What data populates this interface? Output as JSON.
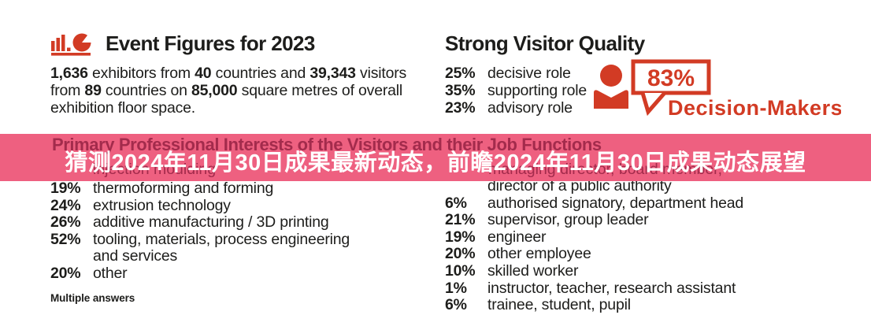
{
  "colors": {
    "accent_red": "#d23b24",
    "banner_pink": "#ee6080",
    "obscured_maroon": "#a32b4c",
    "text_black": "#1d1d1b"
  },
  "event_figures": {
    "icon": "bar-chart-pie-logo",
    "title": "Event Figures for 2023",
    "paragraph_lines": [
      [
        {
          "t": "1,636",
          "b": 1
        },
        {
          "t": " exhibitors from ",
          "b": 0
        },
        {
          "t": "40",
          "b": 1
        },
        {
          "t": " countries and ",
          "b": 0
        },
        {
          "t": "39,343",
          "b": 1
        },
        {
          "t": " visitors",
          "b": 0
        }
      ],
      [
        {
          "t": "from ",
          "b": 0
        },
        {
          "t": "89",
          "b": 1
        },
        {
          "t": " countries on ",
          "b": 0
        },
        {
          "t": "85,000",
          "b": 1
        },
        {
          "t": " square metres of overall",
          "b": 0
        }
      ],
      [
        {
          "t": "exhibition floor space.",
          "b": 0
        }
      ]
    ]
  },
  "visitor_quality": {
    "title": "Strong Visitor Quality",
    "stats": [
      {
        "pct": "25%",
        "label": "decisive role"
      },
      {
        "pct": "35%",
        "label": "supporting role"
      },
      {
        "pct": "23%",
        "label": "advisory role"
      }
    ],
    "decision_makers": {
      "value": "83%",
      "label": "Decision-Makers",
      "icon": "person-icon"
    }
  },
  "overlay_banner": {
    "text": "猜测2024年11月30日成果最新动态，前瞻2024年11月30日成果动态展望"
  },
  "section": {
    "heading_partially_hidden": "Primary Professional Interests of the Visitors and their Job Functions",
    "interests": {
      "hidden_row_fragment": "injection moulding",
      "rows": [
        {
          "pct": "19%",
          "lines": [
            "thermoforming and forming"
          ]
        },
        {
          "pct": "24%",
          "lines": [
            "extrusion technology"
          ]
        },
        {
          "pct": "26%",
          "lines": [
            "additive manufacturing / 3D printing"
          ]
        },
        {
          "pct": "52%",
          "lines": [
            "tooling, materials, process engineering",
            "and services"
          ]
        },
        {
          "pct": "20%",
          "lines": [
            "other"
          ]
        }
      ],
      "footnote": "Multiple answers"
    },
    "job_functions": {
      "hidden_row_fragment": "managing director, board member,",
      "rows": [
        {
          "pct": "",
          "lines": [
            "director of a public authority"
          ]
        },
        {
          "pct": "6%",
          "lines": [
            "authorised signatory, department head"
          ]
        },
        {
          "pct": "21%",
          "lines": [
            "supervisor, group leader"
          ]
        },
        {
          "pct": "19%",
          "lines": [
            "engineer"
          ]
        },
        {
          "pct": "20%",
          "lines": [
            "other employee"
          ]
        },
        {
          "pct": "10%",
          "lines": [
            "skilled worker"
          ]
        },
        {
          "pct": "1%",
          "lines": [
            "instructor, teacher, research assistant"
          ]
        },
        {
          "pct": "6%",
          "lines": [
            "trainee, student, pupil"
          ]
        }
      ]
    }
  }
}
